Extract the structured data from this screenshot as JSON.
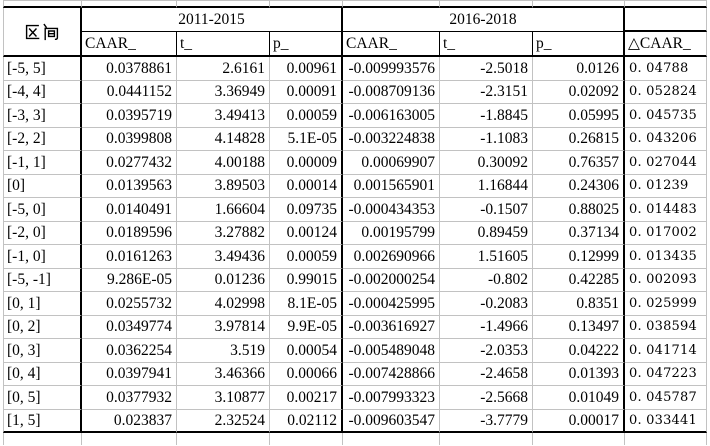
{
  "table": {
    "header": {
      "interval": "区间",
      "period_2011_2015": "2011-2015",
      "period_2016_2018": "2016-2018",
      "caar": "CAAR_",
      "t": "t_",
      "p": "p_",
      "delta_caar": "△CAAR_",
      "empty_cell": ""
    },
    "rows": [
      {
        "interval": "[-5, 5]",
        "caar1": "0.0378861",
        "t1": "2.6161",
        "p1": "0.00961",
        "caar2": "-0.009993576",
        "t2": "-2.5018",
        "p2": "0.0126",
        "dcaar": "0. 04788"
      },
      {
        "interval": "[-4, 4]",
        "caar1": "0.0441152",
        "t1": "3.36949",
        "p1": "0.00091",
        "caar2": "-0.008709136",
        "t2": "-2.3151",
        "p2": "0.02092",
        "dcaar": "0. 052824"
      },
      {
        "interval": "[-3, 3]",
        "caar1": "0.0395719",
        "t1": "3.49413",
        "p1": "0.00059",
        "caar2": "-0.006163005",
        "t2": "-1.8845",
        "p2": "0.05995",
        "dcaar": "0. 045735"
      },
      {
        "interval": "[-2, 2]",
        "caar1": "0.0399808",
        "t1": "4.14828",
        "p1": "5.1E-05",
        "caar2": "-0.003224838",
        "t2": "-1.1083",
        "p2": "0.26815",
        "dcaar": "0. 043206"
      },
      {
        "interval": "[-1, 1]",
        "caar1": "0.0277432",
        "t1": "4.00188",
        "p1": "0.00009",
        "caar2": "0.00069907",
        "t2": "0.30092",
        "p2": "0.76357",
        "dcaar": "0. 027044"
      },
      {
        "interval": "[0]",
        "caar1": "0.0139563",
        "t1": "3.89503",
        "p1": "0.00014",
        "caar2": "0.001565901",
        "t2": "1.16844",
        "p2": "0.24306",
        "dcaar": "0. 01239"
      },
      {
        "interval": "[-5, 0]",
        "caar1": "0.0140491",
        "t1": "1.66604",
        "p1": "0.09735",
        "caar2": "-0.000434353",
        "t2": "-0.1507",
        "p2": "0.88025",
        "dcaar": "0. 014483"
      },
      {
        "interval": "[-2, 0]",
        "caar1": "0.0189596",
        "t1": "3.27882",
        "p1": "0.00124",
        "caar2": "0.00195799",
        "t2": "0.89459",
        "p2": "0.37134",
        "dcaar": "0. 017002"
      },
      {
        "interval": "[-1, 0]",
        "caar1": "0.0161263",
        "t1": "3.49436",
        "p1": "0.00059",
        "caar2": "0.002690966",
        "t2": "1.51605",
        "p2": "0.12999",
        "dcaar": "0. 013435"
      },
      {
        "interval": "[-5, -1]",
        "caar1": "9.286E-05",
        "t1": "0.01236",
        "p1": "0.99015",
        "caar2": "-0.002000254",
        "t2": "-0.802",
        "p2": "0.42285",
        "dcaar": "0. 002093"
      },
      {
        "interval": "[0, 1]",
        "caar1": "0.0255732",
        "t1": "4.02998",
        "p1": "8.1E-05",
        "caar2": "-0.000425995",
        "t2": "-0.2083",
        "p2": "0.8351",
        "dcaar": "0. 025999"
      },
      {
        "interval": "[0, 2]",
        "caar1": "0.0349774",
        "t1": "3.97814",
        "p1": "9.9E-05",
        "caar2": "-0.003616927",
        "t2": "-1.4966",
        "p2": "0.13497",
        "dcaar": "0. 038594"
      },
      {
        "interval": "[0, 3]",
        "caar1": "0.0362254",
        "t1": "3.519",
        "p1": "0.00054",
        "caar2": "-0.005489048",
        "t2": "-2.0353",
        "p2": "0.04222",
        "dcaar": "0. 041714"
      },
      {
        "interval": "[0, 4]",
        "caar1": "0.0397941",
        "t1": "3.46366",
        "p1": "0.00066",
        "caar2": "-0.007428866",
        "t2": "-2.4658",
        "p2": "0.01393",
        "dcaar": "0. 047223"
      },
      {
        "interval": "[0, 5]",
        "caar1": "0.0377932",
        "t1": "3.10877",
        "p1": "0.00217",
        "caar2": "-0.007993323",
        "t2": "-2.5668",
        "p2": "0.01049",
        "dcaar": "0. 045787"
      },
      {
        "interval": "[1, 5]",
        "caar1": "0.023837",
        "t1": "2.32524",
        "p1": "0.02112",
        "caar2": "-0.009603547",
        "t2": "-3.7779",
        "p2": "0.00017",
        "dcaar": "0. 033441"
      }
    ]
  },
  "colors": {
    "grid_line": "#c2c2c2",
    "table_border": "#000000",
    "text": "#000000",
    "background": "#ffffff"
  }
}
